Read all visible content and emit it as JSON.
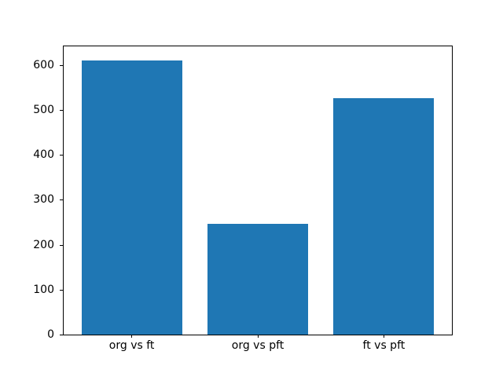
{
  "chart_data": {
    "type": "bar",
    "categories": [
      "org vs ft",
      "org vs pft",
      "ft vs pft"
    ],
    "values": [
      613,
      247,
      528
    ],
    "title": "",
    "xlabel": "",
    "ylabel": "",
    "yticks": [
      0,
      100,
      200,
      300,
      400,
      500,
      600
    ],
    "ylim": [
      0,
      643.65
    ],
    "xlim": [
      -0.54,
      2.54
    ],
    "bar_width": 0.8,
    "bar_color": "#1f77b4",
    "axis_color": "#000000",
    "background_color": "#ffffff",
    "grid": false,
    "legend": null
  }
}
